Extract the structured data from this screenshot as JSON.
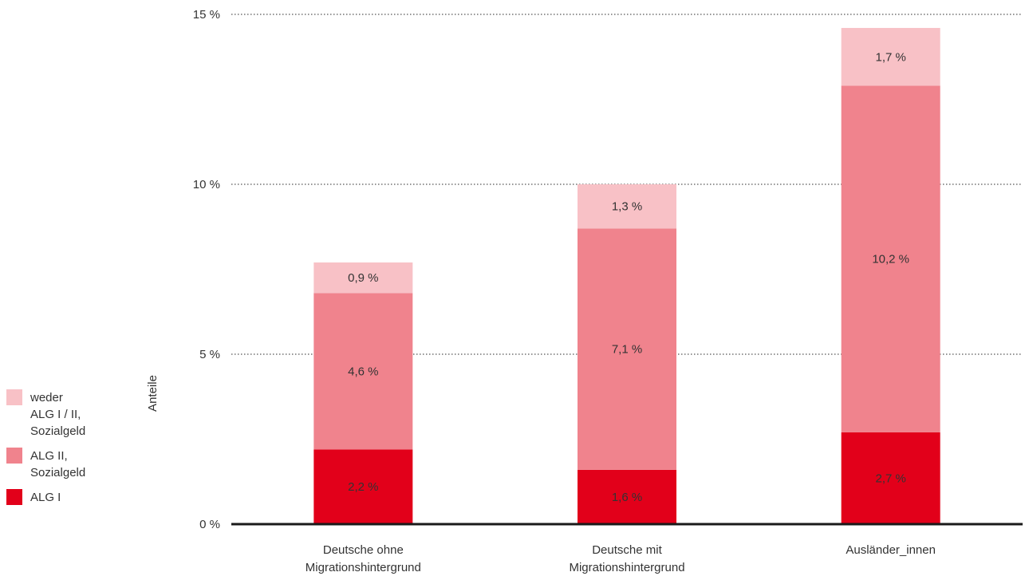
{
  "chart_data": {
    "type": "bar",
    "stacked": true,
    "categories": [
      [
        "Deutsche ohne",
        "Migrationshintergrund"
      ],
      [
        "Deutsche mit",
        "Migrationshintergrund"
      ],
      [
        "Ausländer_innen"
      ]
    ],
    "ylabel": "Anteile",
    "ylim": [
      0,
      15
    ],
    "yticks": [
      0,
      5,
      10,
      15
    ],
    "ytick_labels": [
      "0 %",
      "5 %",
      "10 %",
      "15 %"
    ],
    "grid": "dotted horizontal",
    "legend_position": "left",
    "series": [
      {
        "name": "ALG I",
        "color": "#e2001a",
        "values": [
          2.2,
          1.6,
          2.7
        ],
        "labels": [
          "2,2 %",
          "1,6 %",
          "2,7 %"
        ]
      },
      {
        "name": "ALG II, Sozialgeld",
        "color": "#f0838d",
        "values": [
          4.6,
          7.1,
          10.2
        ],
        "labels": [
          "4,6 %",
          "7,1 %",
          "10,2 %"
        ]
      },
      {
        "name": "weder ALG I / II, Sozialgeld",
        "color": "#f8c1c6",
        "values": [
          0.9,
          1.3,
          1.7
        ],
        "labels": [
          "0,9 %",
          "1,3 %",
          "1,7 %"
        ]
      }
    ]
  },
  "legend": {
    "items": [
      {
        "lines": [
          "weder",
          "ALG I / II,",
          "Sozialgeld"
        ],
        "color": "#f8c1c6"
      },
      {
        "lines": [
          "ALG II,",
          "Sozialgeld"
        ],
        "color": "#f0838d"
      },
      {
        "lines": [
          "ALG I"
        ],
        "color": "#e2001a"
      }
    ]
  }
}
